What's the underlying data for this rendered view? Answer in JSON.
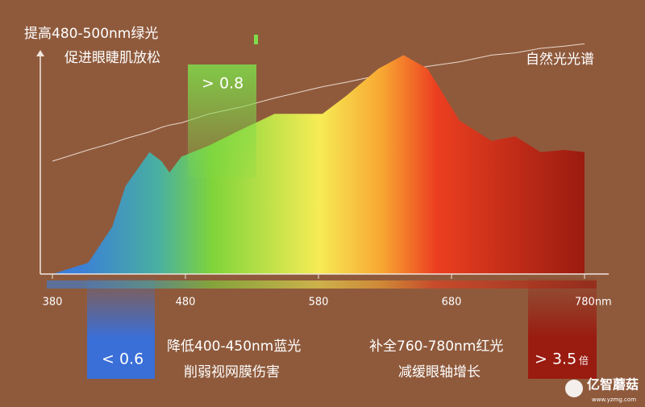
{
  "chart_data": {
    "type": "area",
    "x": [
      380,
      407,
      425,
      435,
      453,
      462,
      468,
      477,
      498,
      522,
      547,
      583,
      601,
      625,
      644,
      662,
      686,
      710,
      728,
      747,
      765,
      780
    ],
    "series": [
      {
        "name": "自然光光谱",
        "color": "#e8d8cc",
        "type": "line",
        "values": [
          50,
          55,
          58,
          60,
          63,
          65,
          66,
          67,
          71,
          74,
          78,
          83,
          85,
          88,
          90,
          92,
          94,
          97,
          98,
          100,
          101,
          102
        ]
      },
      {
        "type": "area",
        "values": [
          0,
          5,
          21,
          39,
          54,
          50,
          45,
          52,
          57,
          64,
          71,
          71,
          79,
          91,
          97,
          91,
          68,
          59,
          61,
          54,
          55,
          54
        ]
      }
    ],
    "xlim": [
      380,
      780
    ],
    "xticks": [
      380,
      480,
      580,
      680,
      {
        "value": 780,
        "label": "780nm"
      }
    ],
    "ylim": [
      0,
      110
    ],
    "annotations": {
      "green_title": "提高480-500nm绿光",
      "green_sub": "促进眼睫肌放松",
      "green_value": "> 0.8",
      "blue_title": "降低400-450nm蓝光",
      "blue_sub": "削弱视网膜伤害",
      "blue_value": "< 0.6",
      "red_title": "补全760-780nm红光",
      "red_sub": "减缓眼轴增长",
      "red_value": "> 3.5",
      "red_unit": "倍",
      "watermark": "亿智蘑菇",
      "watermark_url": "www.yzmg.com"
    }
  }
}
